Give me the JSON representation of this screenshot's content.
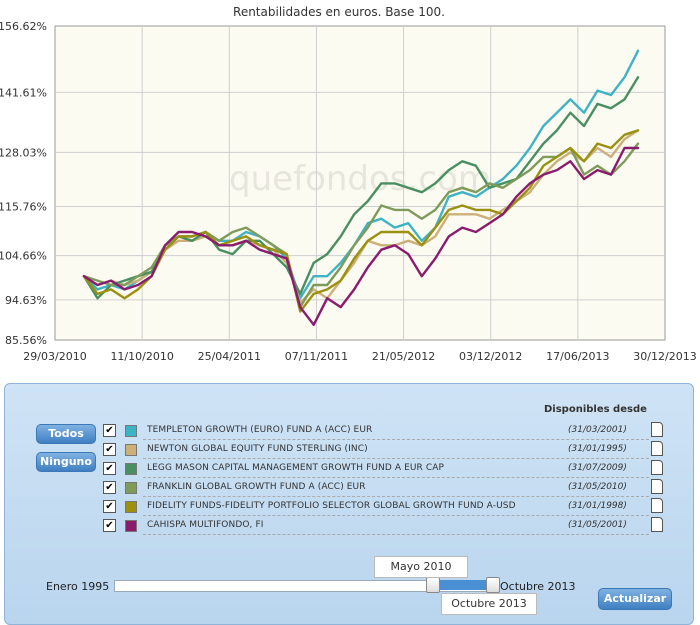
{
  "chart_data": {
    "type": "line",
    "title": "Rentabilidades en euros. Base 100.",
    "watermark": "quefondos.com",
    "xlabels": [
      "29/03/2010",
      "11/10/2010",
      "25/04/2011",
      "07/11/2011",
      "21/05/2012",
      "03/12/2012",
      "17/06/2013",
      "30/12/2013"
    ],
    "ylabels": [
      "85.56%",
      "94.63%",
      "104.66%",
      "115.76%",
      "128.03%",
      "141.61%",
      "156.62%"
    ],
    "ylim": [
      85.56,
      156.62
    ],
    "grid": true,
    "series": [
      {
        "name": "TEMPLETON GROWTH (EURO) FUND A (ACC) EUR",
        "color": "#3fb3c6",
        "values": [
          100,
          97,
          98,
          97,
          99,
          101,
          107,
          109,
          109,
          110,
          108,
          108,
          110,
          109,
          107,
          104,
          95,
          100,
          100,
          103,
          107,
          112,
          113,
          111,
          112,
          108,
          111,
          118,
          119,
          118,
          120,
          122,
          125,
          129,
          134,
          137,
          140,
          137,
          142,
          141,
          145,
          151
        ]
      },
      {
        "name": "NEWTON GLOBAL EQUITY FUND STERLING (INC)",
        "color": "#cbb07a",
        "values": [
          100,
          98,
          99,
          98,
          99,
          101,
          106,
          108,
          108,
          109,
          107,
          107,
          108,
          107,
          106,
          103,
          94,
          97,
          95,
          99,
          103,
          108,
          107,
          107,
          108,
          107,
          109,
          114,
          114,
          114,
          113,
          115,
          117,
          119,
          123,
          126,
          128,
          126,
          129,
          127,
          131,
          133
        ]
      },
      {
        "name": "LEGG MASON CAPITAL MANAGEMENT GROWTH FUND A EUR CAP",
        "color": "#4a8f62",
        "values": [
          100,
          95,
          98,
          99,
          100,
          101,
          106,
          109,
          108,
          110,
          106,
          105,
          108,
          108,
          105,
          102,
          96,
          103,
          105,
          109,
          114,
          117,
          121,
          121,
          120,
          119,
          121,
          124,
          126,
          125,
          120,
          121,
          122,
          126,
          130,
          133,
          137,
          134,
          139,
          138,
          140,
          145
        ]
      },
      {
        "name": "FRANKLIN GLOBAL GROWTH FUND A (ACC) EUR",
        "color": "#7f9b5a",
        "values": [
          100,
          99,
          98,
          98,
          100,
          102,
          107,
          109,
          109,
          110,
          108,
          110,
          111,
          109,
          107,
          105,
          93,
          98,
          98,
          102,
          107,
          111,
          116,
          115,
          115,
          113,
          115,
          119,
          120,
          119,
          121,
          120,
          122,
          124,
          127,
          127,
          129,
          123,
          125,
          123,
          126,
          130
        ]
      },
      {
        "name": "FIDELITY FUNDS-FIDELITY PORTFOLIO SELECTOR GLOBAL GROWTH FUND A-USD",
        "color": "#9b9010",
        "values": [
          100,
          96,
          97,
          95,
          97,
          100,
          106,
          109,
          109,
          110,
          107,
          108,
          109,
          107,
          106,
          105,
          92,
          96,
          97,
          99,
          104,
          108,
          110,
          110,
          110,
          107,
          111,
          115,
          116,
          115,
          115,
          114,
          117,
          120,
          125,
          127,
          129,
          126,
          130,
          129,
          132,
          133
        ]
      },
      {
        "name": "CAHISPA MULTIFONDO, FI",
        "color": "#8a1c6e",
        "values": [
          100,
          98,
          99,
          97,
          98,
          100,
          107,
          110,
          110,
          109,
          107,
          107,
          108,
          106,
          105,
          104,
          93,
          89,
          95,
          93,
          97,
          102,
          106,
          107,
          105,
          100,
          104,
          109,
          111,
          110,
          112,
          114,
          118,
          121,
          123,
          124,
          126,
          122,
          124,
          123,
          129,
          129
        ]
      }
    ]
  },
  "panel": {
    "header": "Disponibles desde",
    "btn_todos": "Todos",
    "btn_ninguno": "Ninguno",
    "check_mark": "✔",
    "funds": [
      {
        "name": "TEMPLETON GROWTH (EURO) FUND A (ACC) EUR",
        "date": "(31/03/2001)",
        "color": "#3fb3c6"
      },
      {
        "name": "NEWTON GLOBAL EQUITY FUND STERLING (INC)",
        "date": "(31/01/1995)",
        "color": "#cbb07a"
      },
      {
        "name": "LEGG MASON CAPITAL MANAGEMENT GROWTH FUND A EUR CAP",
        "date": "(31/07/2009)",
        "color": "#4a8f62"
      },
      {
        "name": "FRANKLIN GLOBAL GROWTH FUND A (ACC) EUR",
        "date": "(31/05/2010)",
        "color": "#7f9b5a"
      },
      {
        "name": "FIDELITY FUNDS-FIDELITY PORTFOLIO SELECTOR GLOBAL GROWTH FUND A-USD",
        "date": "(31/01/1998)",
        "color": "#9b9010"
      },
      {
        "name": "CAHISPA MULTIFONDO, FI",
        "date": "(31/05/2001)",
        "color": "#8a1c6e"
      }
    ],
    "slider": {
      "min_label": "Enero 1995",
      "max_label": "Octubre 2013",
      "from_value": "Mayo 2010",
      "to_value": "Octubre 2013",
      "from_fraction": 0.827,
      "to_fraction": 1.0
    },
    "btn_update": "Actualizar"
  }
}
